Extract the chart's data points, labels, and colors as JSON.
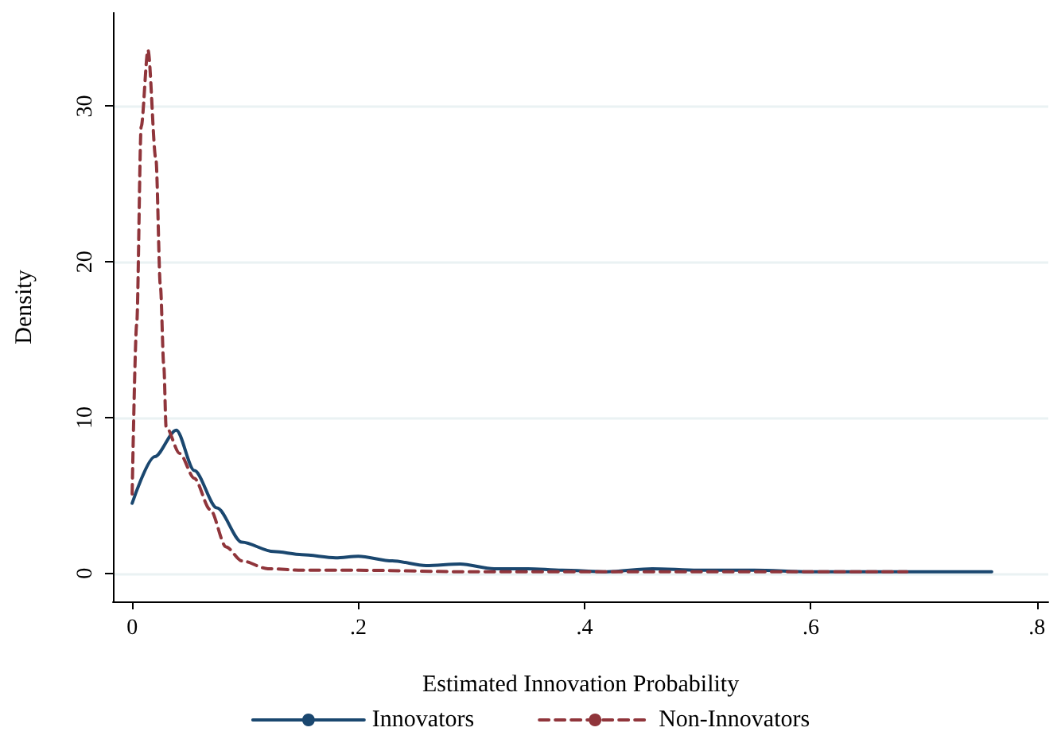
{
  "chart_data": {
    "type": "line",
    "xlabel": "Estimated Innovation Probability",
    "ylabel": "Density",
    "xlim": [
      -0.017,
      0.81
    ],
    "ylim": [
      -1.8,
      36
    ],
    "xticks": [
      {
        "value": 0,
        "label": "0"
      },
      {
        "value": 0.2,
        "label": ".2"
      },
      {
        "value": 0.4,
        "label": ".4"
      },
      {
        "value": 0.6,
        "label": ".6"
      },
      {
        "value": 0.8,
        "label": ".8"
      }
    ],
    "yticks": [
      0,
      10,
      20,
      30
    ],
    "grid": "y",
    "legend": "bottom",
    "marker": "none",
    "series": [
      {
        "name": "Innovators",
        "color": "#1a476f",
        "line_style": "solid",
        "x": [
          0,
          0.02,
          0.039,
          0.055,
          0.075,
          0.097,
          0.125,
          0.15,
          0.18,
          0.2,
          0.23,
          0.26,
          0.29,
          0.32,
          0.35,
          0.38,
          0.42,
          0.46,
          0.5,
          0.55,
          0.6,
          0.65,
          0.7,
          0.76
        ],
        "values": [
          4.5,
          7.5,
          9.2,
          6.6,
          4.2,
          2.0,
          1.4,
          1.2,
          1.0,
          1.1,
          0.8,
          0.5,
          0.6,
          0.3,
          0.3,
          0.2,
          0.1,
          0.3,
          0.2,
          0.2,
          0.1,
          0.1,
          0.1,
          0.1
        ]
      },
      {
        "name": "Non-Innovators",
        "color": "#90353b",
        "line_style": "dashed",
        "x": [
          0,
          0.004,
          0.008,
          0.014,
          0.021,
          0.025,
          0.028,
          0.03,
          0.042,
          0.055,
          0.069,
          0.083,
          0.097,
          0.12,
          0.15,
          0.2,
          0.3,
          0.4,
          0.5,
          0.6,
          0.685
        ],
        "values": [
          5.1,
          16,
          28.7,
          33.6,
          26.6,
          18.4,
          13.3,
          9.4,
          7.7,
          6.1,
          4.1,
          1.7,
          0.8,
          0.3,
          0.2,
          0.2,
          0.1,
          0.1,
          0.1,
          0.1,
          0.1
        ]
      }
    ]
  }
}
